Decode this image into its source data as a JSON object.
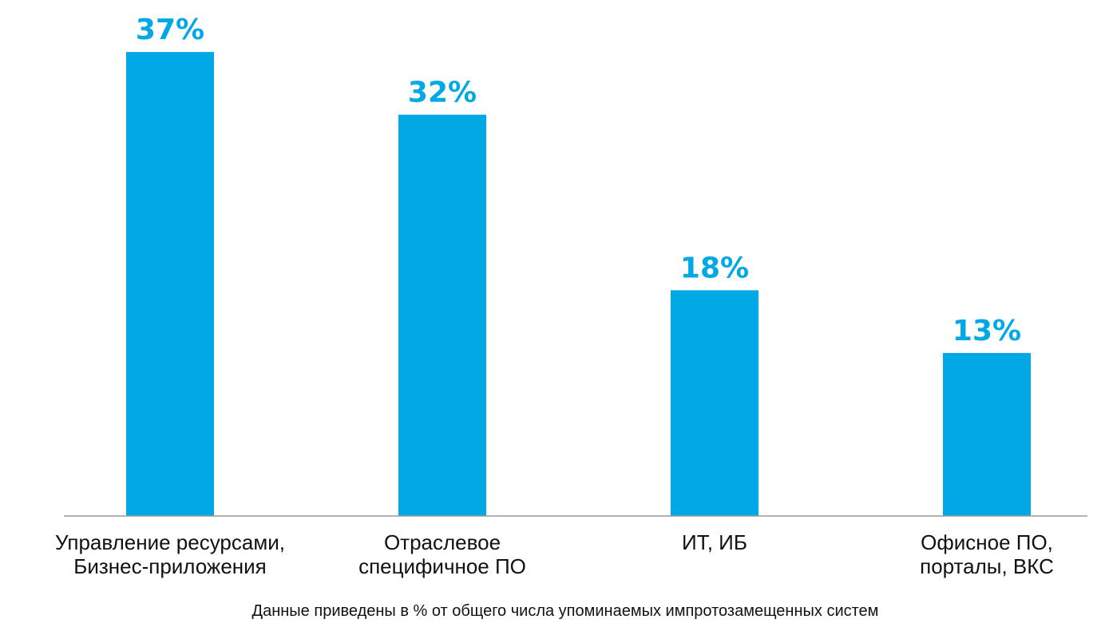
{
  "chart_data": {
    "type": "bar",
    "categories": [
      [
        "Управление ресурсами,",
        "Бизнес-приложения"
      ],
      [
        "Отраслевое",
        "специфичное ПО"
      ],
      [
        "ИТ, ИБ"
      ],
      [
        "Офисное ПО,",
        "порталы, ВКС"
      ]
    ],
    "values": [
      37,
      32,
      18,
      13
    ],
    "data_labels": [
      "37%",
      "32%",
      "18%",
      "13%"
    ],
    "ylim": [
      0,
      40
    ],
    "grid": false,
    "legend": "none",
    "bar_color": "#00A8E6",
    "label_color": "#00A8E6",
    "axis_color": "#9a9a9a",
    "title": "",
    "xlabel": "",
    "ylabel": ""
  },
  "footnote": "Данные приведены в % от общего числа упоминаемых  импротозамещенных систем"
}
